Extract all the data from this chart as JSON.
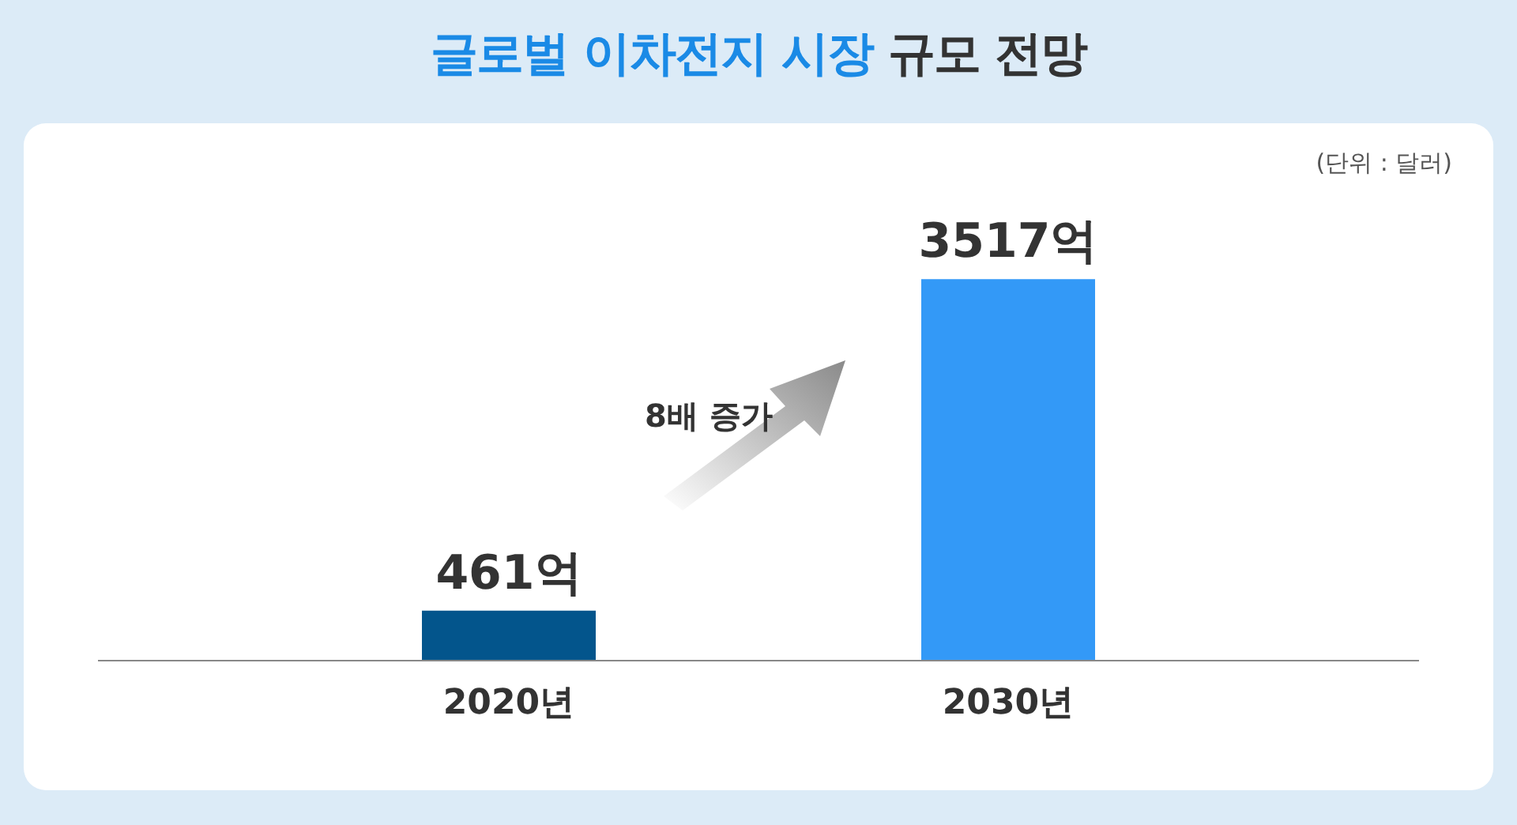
{
  "chart_data": {
    "type": "bar",
    "title": "글로벌 이차전지 시장 규모 전망",
    "categories": [
      "2020년",
      "2030년"
    ],
    "values": [
      461,
      3517
    ],
    "value_labels": [
      "461억",
      "3517억"
    ],
    "colors": [
      "#03558c",
      "#3399f7"
    ],
    "annotations": [
      "(단위 : 달러)",
      "8배 증가"
    ],
    "grid": false,
    "legend": false,
    "tick_labels": "x"
  }
}
